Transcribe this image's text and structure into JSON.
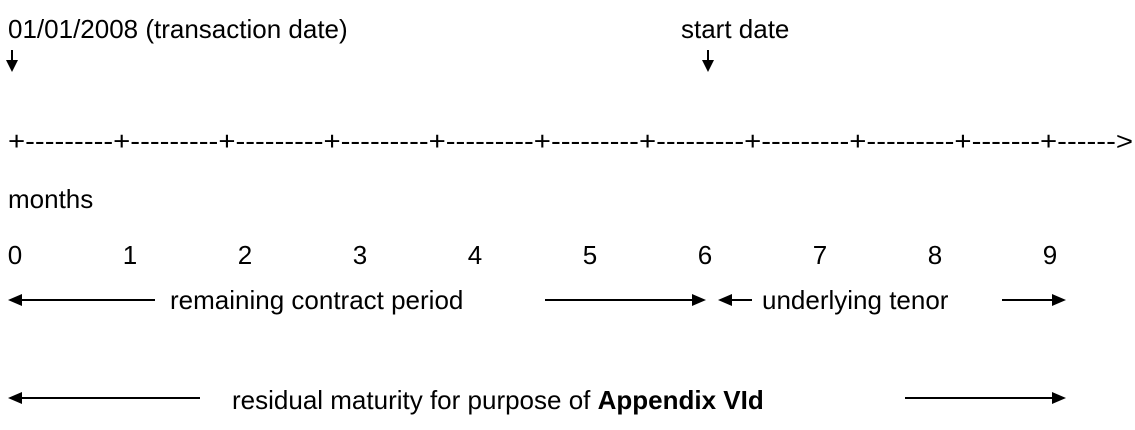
{
  "markers": {
    "transaction": "01/01/2008 (transaction date)",
    "start": "start date"
  },
  "timeline": "+---------+---------+---------+---------+---------+---------+---------+---------+---------+-------+------>",
  "axis": {
    "label": "months",
    "ticks": [
      0,
      1,
      2,
      3,
      4,
      5,
      6,
      7,
      8,
      9
    ]
  },
  "spans": {
    "contract": "remaining contract period",
    "tenor": "underlying tenor",
    "residual": {
      "text": "residual maturity for purpose of",
      "bold": "Appendix VId"
    }
  }
}
